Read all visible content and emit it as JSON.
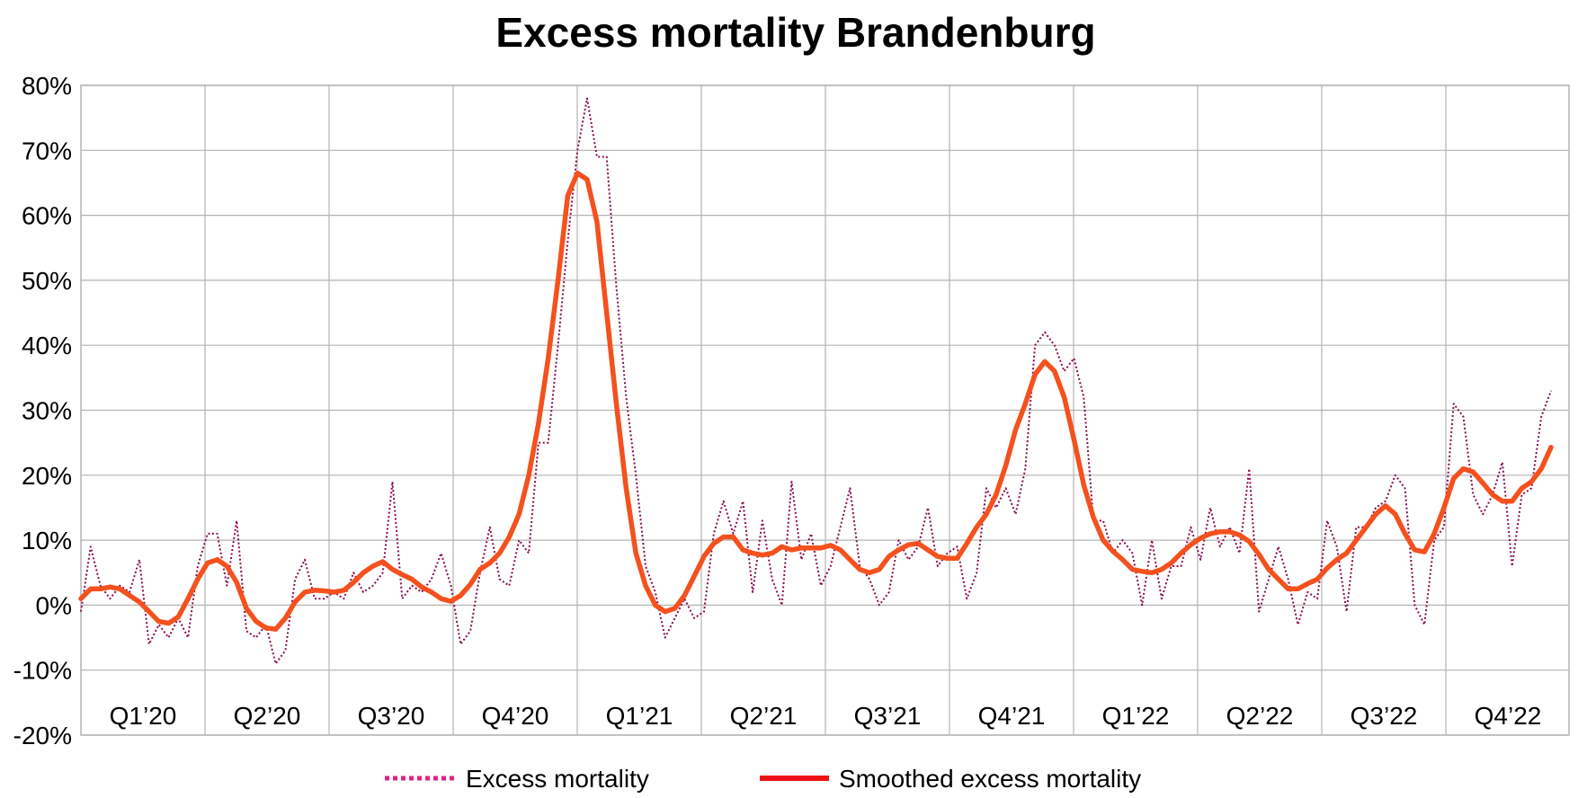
{
  "chart_data": {
    "type": "line",
    "title": "Excess mortality Brandenburg",
    "xlabel": "",
    "ylabel": "",
    "ylim": [
      -0.2,
      0.8
    ],
    "y_ticks": [
      {
        "value": 0.8,
        "label": "80%"
      },
      {
        "value": 0.7,
        "label": "70%"
      },
      {
        "value": 0.6,
        "label": "60%"
      },
      {
        "value": 0.5,
        "label": "50%"
      },
      {
        "value": 0.4,
        "label": "40%"
      },
      {
        "value": 0.3,
        "label": "30%"
      },
      {
        "value": 0.2,
        "label": "20%"
      },
      {
        "value": 0.1,
        "label": "10%"
      },
      {
        "value": 0.0,
        "label": "0%"
      },
      {
        "value": -0.1,
        "label": "-10%"
      },
      {
        "value": -0.2,
        "label": "-20%"
      }
    ],
    "quarters": [
      "Q1’20",
      "Q2’20",
      "Q3’20",
      "Q4’20",
      "Q1’21",
      "Q2’21",
      "Q3’21",
      "Q4’21",
      "Q1’22",
      "Q2’22",
      "Q3’22",
      "Q4’22"
    ],
    "grid": true,
    "legend_position": "bottom",
    "series": [
      {
        "name": "Excess mortality",
        "color": "#8b0a50",
        "legend_color": "#e0218a",
        "style": "dotted",
        "values": [
          -0.01,
          0.09,
          0.03,
          0.01,
          0.03,
          0.02,
          0.07,
          -0.06,
          -0.03,
          -0.05,
          -0.02,
          -0.05,
          0.06,
          0.11,
          0.11,
          0.03,
          0.13,
          -0.04,
          -0.05,
          -0.03,
          -0.09,
          -0.07,
          0.04,
          0.07,
          0.01,
          0.01,
          0.02,
          0.01,
          0.05,
          0.02,
          0.03,
          0.05,
          0.19,
          0.01,
          0.03,
          0.02,
          0.04,
          0.08,
          0.03,
          -0.06,
          -0.04,
          0.05,
          0.12,
          0.04,
          0.03,
          0.1,
          0.08,
          0.25,
          0.25,
          0.4,
          0.56,
          0.7,
          0.78,
          0.69,
          0.69,
          0.49,
          0.32,
          0.2,
          0.06,
          0.02,
          -0.05,
          -0.02,
          0.01,
          -0.02,
          -0.01,
          0.11,
          0.16,
          0.11,
          0.16,
          0.02,
          0.13,
          0.04,
          0.0,
          0.19,
          0.07,
          0.11,
          0.03,
          0.06,
          0.12,
          0.18,
          0.06,
          0.04,
          0.0,
          0.02,
          0.1,
          0.07,
          0.09,
          0.15,
          0.06,
          0.08,
          0.09,
          0.01,
          0.05,
          0.18,
          0.15,
          0.18,
          0.14,
          0.21,
          0.4,
          0.42,
          0.4,
          0.36,
          0.38,
          0.32,
          0.13,
          0.13,
          0.08,
          0.1,
          0.08,
          0.0,
          0.1,
          0.01,
          0.06,
          0.06,
          0.12,
          0.07,
          0.15,
          0.09,
          0.12,
          0.08,
          0.21,
          -0.01,
          0.04,
          0.09,
          0.04,
          -0.03,
          0.02,
          0.01,
          0.13,
          0.09,
          -0.01,
          0.12,
          0.12,
          0.15,
          0.16,
          0.2,
          0.18,
          0.0,
          -0.03,
          0.1,
          0.12,
          0.31,
          0.29,
          0.17,
          0.14,
          0.17,
          0.22,
          0.06,
          0.17,
          0.18,
          0.29,
          0.33
        ]
      },
      {
        "name": "Smoothed excess mortality",
        "color": "#f4511e",
        "legend_color": "#ee1111",
        "style": "solid",
        "values": [
          0.01,
          0.025,
          0.025,
          0.028,
          0.025,
          0.015,
          0.005,
          -0.01,
          -0.025,
          -0.028,
          -0.018,
          0.01,
          0.04,
          0.065,
          0.07,
          0.06,
          0.035,
          -0.005,
          -0.025,
          -0.035,
          -0.037,
          -0.02,
          0.005,
          0.02,
          0.023,
          0.022,
          0.02,
          0.023,
          0.035,
          0.05,
          0.06,
          0.067,
          0.055,
          0.047,
          0.04,
          0.028,
          0.02,
          0.01,
          0.006,
          0.015,
          0.032,
          0.055,
          0.065,
          0.08,
          0.105,
          0.14,
          0.2,
          0.28,
          0.38,
          0.5,
          0.63,
          0.665,
          0.655,
          0.59,
          0.45,
          0.31,
          0.18,
          0.08,
          0.03,
          0.0,
          -0.01,
          -0.005,
          0.015,
          0.045,
          0.075,
          0.095,
          0.105,
          0.105,
          0.085,
          0.08,
          0.077,
          0.08,
          0.09,
          0.085,
          0.088,
          0.088,
          0.088,
          0.092,
          0.085,
          0.07,
          0.055,
          0.05,
          0.055,
          0.075,
          0.085,
          0.093,
          0.095,
          0.085,
          0.075,
          0.072,
          0.072,
          0.095,
          0.12,
          0.14,
          0.17,
          0.215,
          0.27,
          0.31,
          0.355,
          0.375,
          0.36,
          0.32,
          0.255,
          0.185,
          0.135,
          0.1,
          0.083,
          0.07,
          0.055,
          0.052,
          0.05,
          0.055,
          0.065,
          0.08,
          0.093,
          0.103,
          0.11,
          0.113,
          0.113,
          0.108,
          0.098,
          0.078,
          0.055,
          0.04,
          0.025,
          0.025,
          0.033,
          0.04,
          0.057,
          0.07,
          0.08,
          0.1,
          0.12,
          0.14,
          0.153,
          0.14,
          0.11,
          0.085,
          0.082,
          0.11,
          0.15,
          0.195,
          0.21,
          0.205,
          0.188,
          0.17,
          0.16,
          0.16,
          0.18,
          0.19,
          0.21,
          0.243
        ]
      }
    ]
  }
}
